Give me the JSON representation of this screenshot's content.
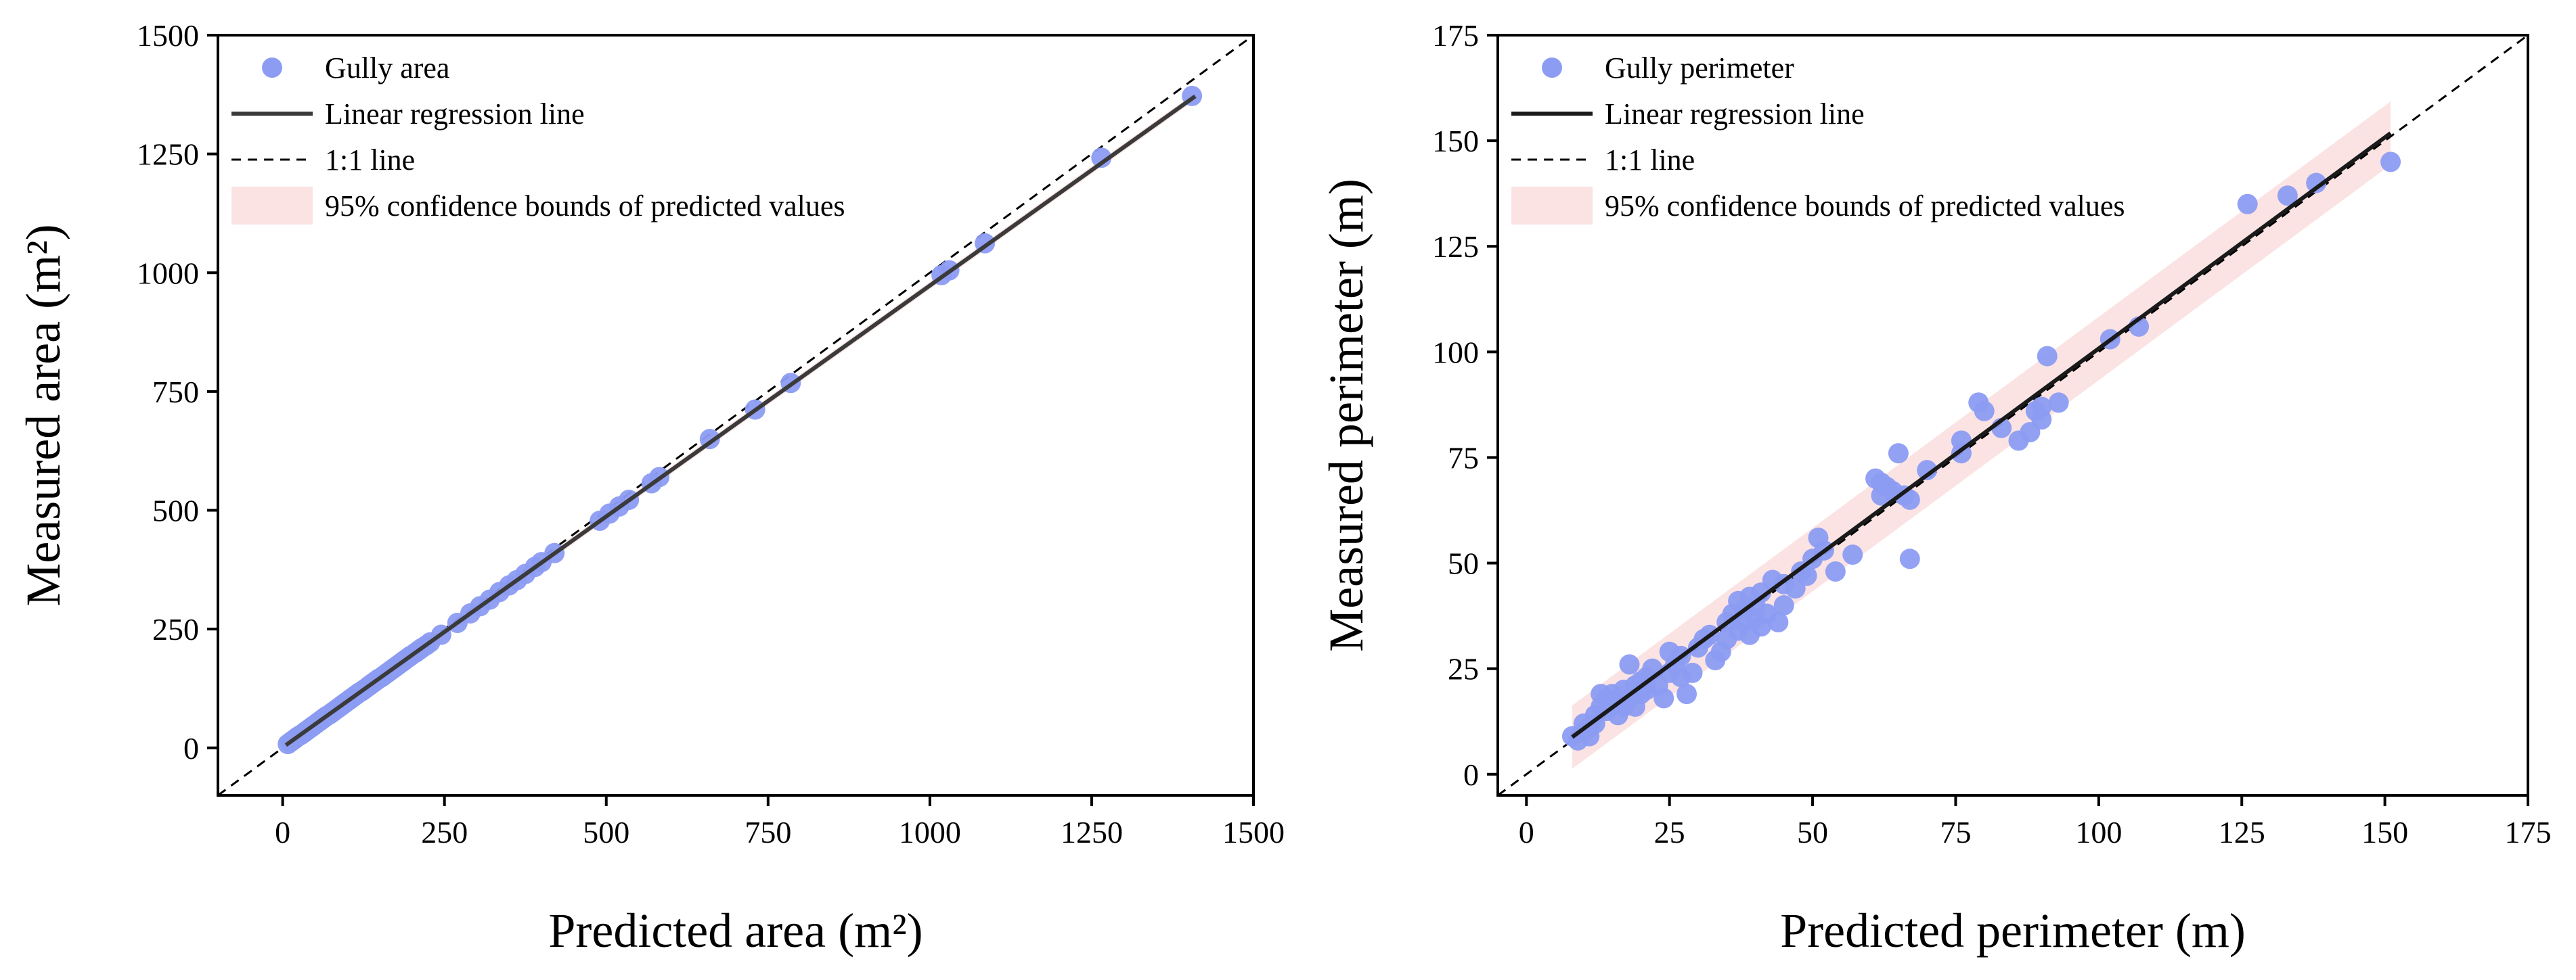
{
  "chart_data": [
    {
      "type": "scatter",
      "xlabel": "Predicted area (m²)",
      "ylabel": "Measured area (m²)",
      "xlim": [
        -100,
        1500
      ],
      "ylim": [
        -100,
        1500
      ],
      "xticks": [
        "0",
        "250",
        "500",
        "750",
        "1000",
        "1250",
        "1500"
      ],
      "yticks": [
        "0",
        "250",
        "500",
        "750",
        "1000",
        "1250",
        "1500"
      ],
      "legend_position": "top-left",
      "legend": [
        {
          "kind": "point",
          "label": "Gully area"
        },
        {
          "kind": "regression",
          "label": "Linear regression line"
        },
        {
          "kind": "identity",
          "label": "1:1 line"
        },
        {
          "kind": "band",
          "label": "95% confidence bounds of predicted values"
        }
      ],
      "regression": {
        "x_start": 5,
        "x_end": 1410,
        "slope": 0.972,
        "intercept": 1
      },
      "confidence_band_halfwidth": 8,
      "colors": {
        "points": "#8c9cf2",
        "regression": "#3a3a3a",
        "band": "#fbe3e3",
        "identity": "#000000"
      },
      "points": {
        "x": [
          8,
          12,
          15,
          18,
          22,
          25,
          28,
          32,
          35,
          38,
          42,
          45,
          48,
          52,
          55,
          58,
          62,
          65,
          68,
          72,
          75,
          78,
          82,
          85,
          88,
          92,
          95,
          98,
          102,
          105,
          108,
          112,
          115,
          118,
          122,
          125,
          128,
          132,
          135,
          138,
          142,
          145,
          148,
          152,
          155,
          158,
          162,
          165,
          168,
          172,
          175,
          178,
          182,
          185,
          188,
          192,
          195,
          198,
          205,
          210,
          215,
          222,
          228,
          245,
          270,
          290,
          305,
          320,
          335,
          350,
          362,
          375,
          390,
          400,
          420,
          490,
          505,
          520,
          535,
          570,
          582,
          660,
          730,
          785,
          1018,
          1030,
          1085,
          1265,
          1405
        ],
        "y": [
          8,
          12,
          15,
          18,
          22,
          25,
          27,
          31,
          34,
          37,
          41,
          44,
          47,
          51,
          54,
          57,
          61,
          64,
          67,
          70,
          73,
          76,
          80,
          83,
          86,
          90,
          93,
          96,
          100,
          103,
          106,
          110,
          113,
          116,
          119,
          122,
          125,
          129,
          132,
          135,
          139,
          142,
          145,
          148,
          151,
          154,
          158,
          161,
          164,
          168,
          171,
          174,
          178,
          181,
          184,
          188,
          191,
          194,
          200,
          205,
          210,
          216,
          222,
          238,
          263,
          283,
          298,
          312,
          328,
          342,
          353,
          366,
          381,
          391,
          410,
          478,
          493,
          508,
          522,
          557,
          570,
          650,
          712,
          768,
          995,
          1005,
          1062,
          1242,
          1372
        ]
      }
    },
    {
      "type": "scatter",
      "xlabel": "Predicted perimeter (m)",
      "ylabel": "Measured perimeter (m)",
      "xlim": [
        -5,
        175
      ],
      "ylim": [
        -5,
        175
      ],
      "xticks": [
        "0",
        "25",
        "50",
        "75",
        "100",
        "125",
        "150",
        "175"
      ],
      "yticks": [
        "0",
        "25",
        "50",
        "75",
        "100",
        "125",
        "150",
        "175"
      ],
      "legend_position": "top-left",
      "legend": [
        {
          "kind": "point",
          "label": "Gully perimeter"
        },
        {
          "kind": "regression",
          "label": "Linear regression line"
        },
        {
          "kind": "identity",
          "label": "1:1 line"
        },
        {
          "kind": "band",
          "label": "95% confidence bounds of predicted values"
        }
      ],
      "regression": {
        "x_start": 8,
        "x_end": 151,
        "slope": 1.0,
        "intercept": 0.8
      },
      "confidence_band_halfwidth": 7.5,
      "colors": {
        "points": "#8c9cf2",
        "regression": "#1a1a1a",
        "band": "#fbe3e3",
        "identity": "#000000"
      },
      "points": {
        "x": [
          8,
          9,
          10,
          10,
          11,
          11,
          12,
          12,
          13,
          13,
          14,
          14,
          15,
          15,
          16,
          17,
          17,
          18,
          18,
          19,
          19,
          20,
          20,
          21,
          21,
          22,
          23,
          24,
          25,
          25,
          26,
          27,
          27,
          28,
          29,
          30,
          31,
          32,
          33,
          34,
          35,
          35,
          36,
          37,
          37,
          38,
          38,
          39,
          39,
          40,
          40,
          41,
          41,
          42,
          43,
          44,
          45,
          45,
          47,
          48,
          49,
          50,
          51,
          52,
          54,
          57,
          61,
          62,
          62,
          63,
          64,
          65,
          66,
          67,
          67,
          70,
          76,
          76,
          79,
          80,
          83,
          86,
          88,
          89,
          90,
          90,
          91,
          93,
          102,
          107,
          126,
          133,
          138,
          151
        ],
        "y": [
          9,
          8,
          12,
          10,
          11,
          9,
          14,
          12,
          19,
          16,
          18,
          15,
          19,
          17,
          14,
          20,
          16,
          26,
          18,
          21,
          16,
          22,
          19,
          23,
          20,
          25,
          21,
          18,
          29,
          24,
          26,
          23,
          28,
          19,
          24,
          30,
          32,
          33,
          27,
          29,
          36,
          32,
          38,
          34,
          41,
          36,
          39,
          33,
          42,
          37,
          40,
          43,
          35,
          38,
          46,
          36,
          45,
          40,
          44,
          48,
          47,
          51,
          56,
          53,
          48,
          52,
          70,
          66,
          69,
          68,
          67,
          76,
          66,
          65,
          51,
          72,
          79,
          76,
          88,
          86,
          82,
          79,
          81,
          86,
          84,
          87,
          99,
          88,
          103,
          106,
          135,
          137,
          140,
          145
        ]
      }
    }
  ]
}
